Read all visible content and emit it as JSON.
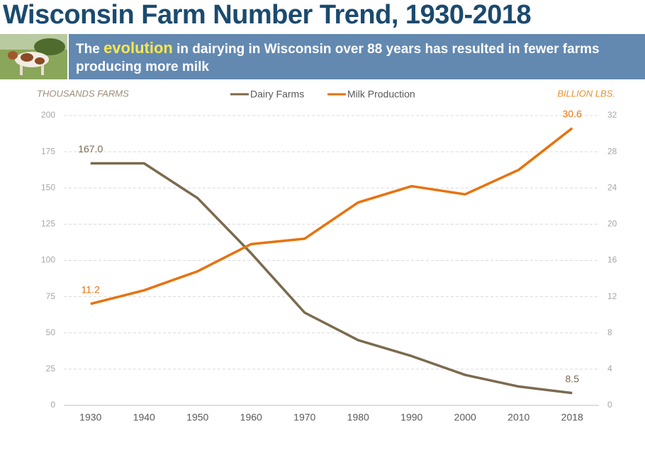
{
  "header": {
    "title": "Wisconsin Farm Number Trend, 1930-2018",
    "subtitle": [
      "The ",
      "evolution",
      " in dairying in Wisconsin over 88 years has resulted in fewer farms producing more milk"
    ]
  },
  "chart_data": {
    "type": "line",
    "y_label": "THOUSANDS FARMS",
    "y2_label": "BILLION LBS.",
    "categories": [
      "1930",
      "1940",
      "1950",
      "1960",
      "1970",
      "1980",
      "1990",
      "2000",
      "2010",
      "2018"
    ],
    "series": [
      {
        "name": "Dairy Farms",
        "color": "#7b6a4e",
        "values": [
          167,
          167,
          143,
          105,
          64,
          45,
          34,
          21,
          13,
          8.5
        ],
        "value_labels": [
          "167.0",
          null,
          null,
          null,
          null,
          null,
          null,
          null,
          null,
          "8.5"
        ]
      },
      {
        "name": "Milk Production",
        "color": "#e8720c",
        "axis": "y2",
        "values": [
          11.2,
          12.7,
          14.8,
          17.8,
          18.4,
          22.4,
          24.2,
          23.3,
          26.0,
          30.6
        ],
        "value_labels": [
          "11.2",
          null,
          null,
          null,
          null,
          null,
          null,
          null,
          null,
          "30.6"
        ]
      }
    ],
    "ylim": [
      0,
      200
    ],
    "yticks": [
      0,
      25,
      50,
      75,
      100,
      125,
      150,
      175,
      200
    ],
    "y2lim": [
      0,
      32
    ],
    "y2ticks": [
      0,
      4,
      8,
      12,
      16,
      20,
      24,
      28,
      32
    ],
    "grid": true,
    "legend": "top"
  }
}
